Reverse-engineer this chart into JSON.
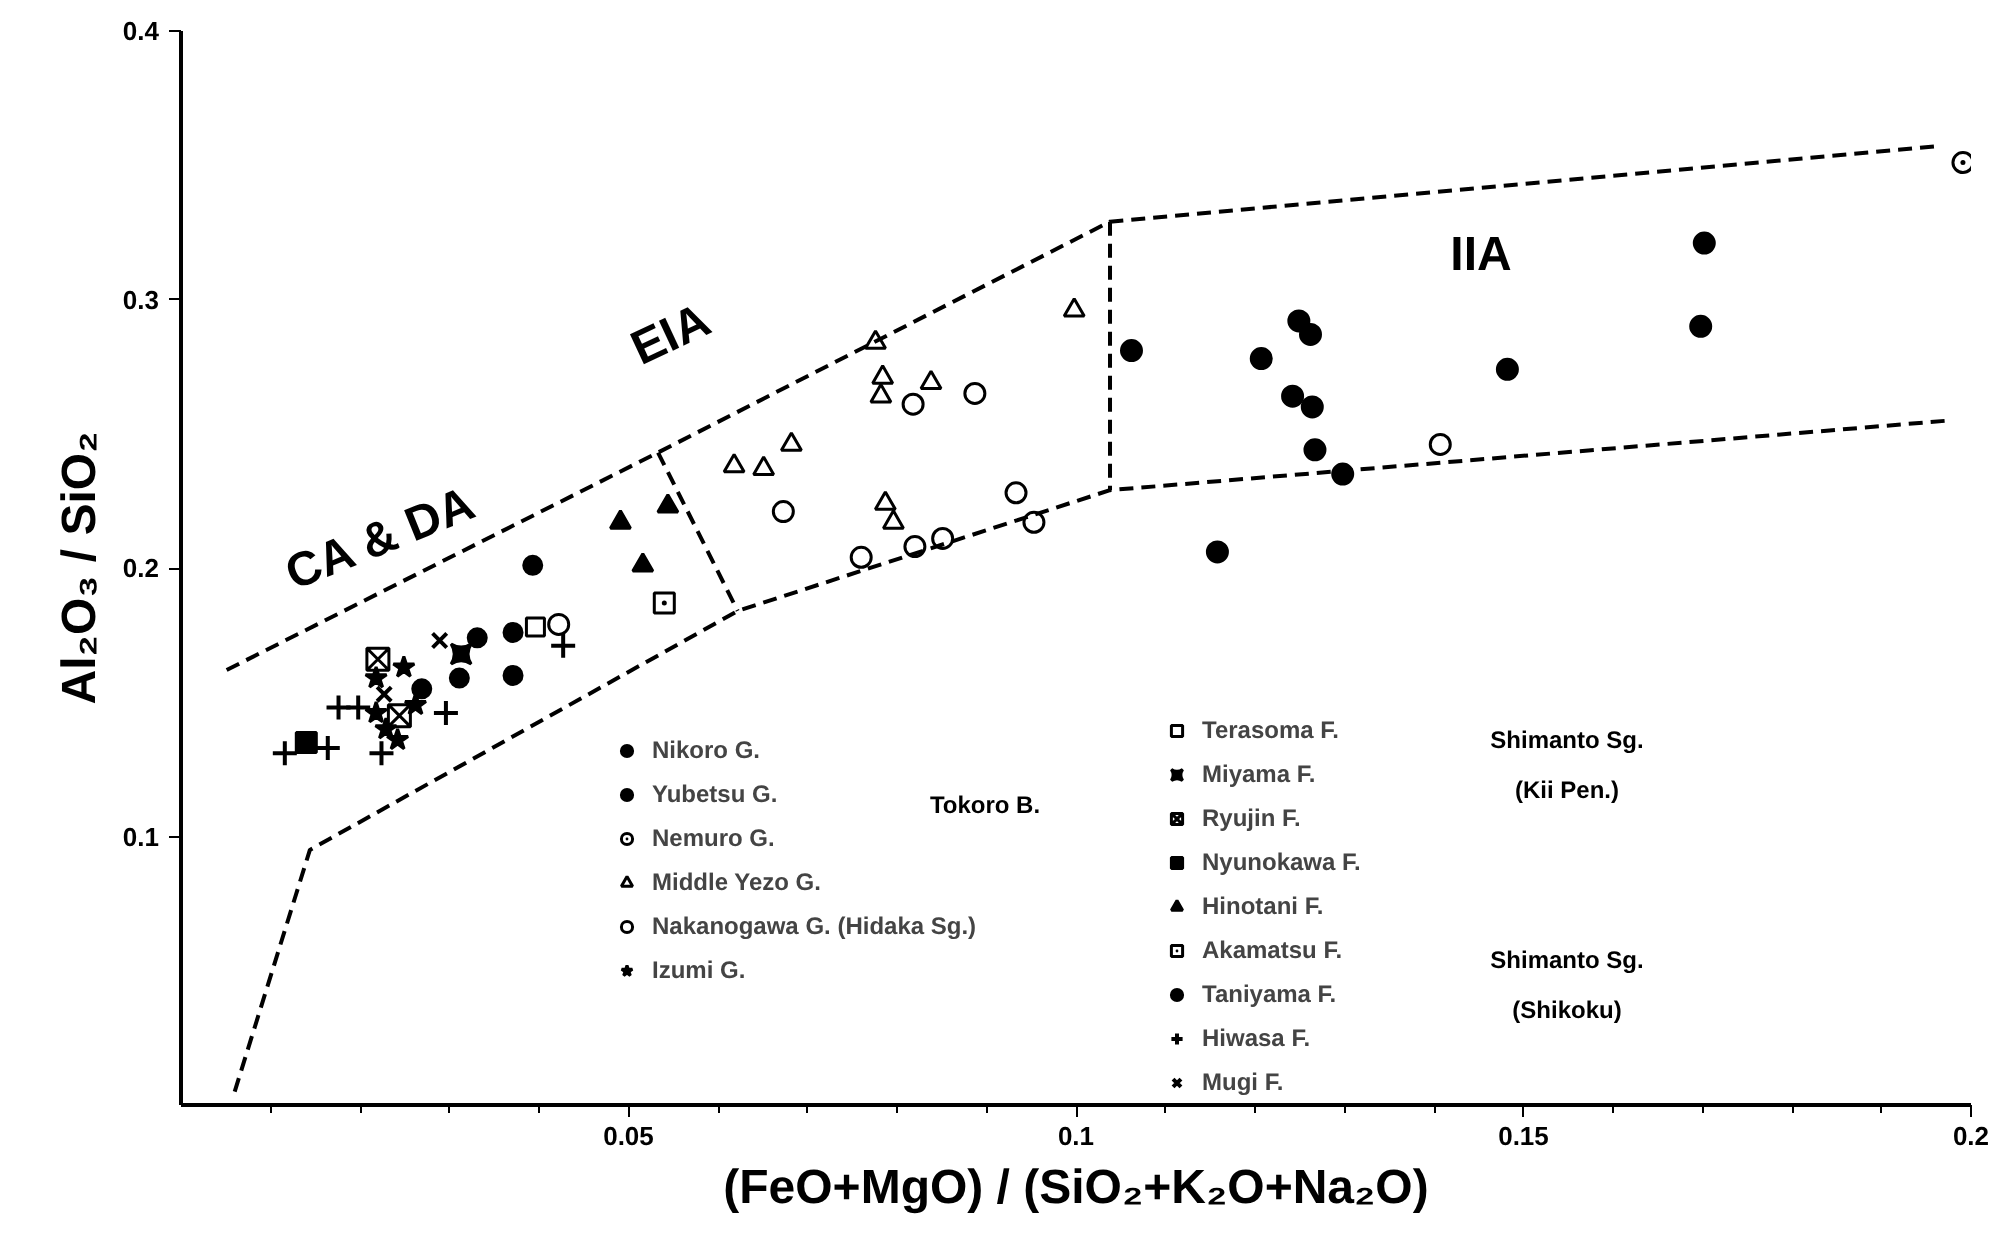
{
  "chart_data": {
    "type": "scatter",
    "xlabel": "(FeO+MgO) / (SiO₂+K₂O+Na₂O)",
    "ylabel": "Al₂O₃ / SiO₂",
    "xlim": [
      0,
      0.2
    ],
    "ylim": [
      0,
      0.4
    ],
    "xticks": [
      {
        "value": 0.01,
        "label": null
      },
      {
        "value": 0.02,
        "label": null
      },
      {
        "value": 0.03,
        "label": null
      },
      {
        "value": 0.04,
        "label": null
      },
      0.05,
      {
        "value": 0.06,
        "label": null
      },
      {
        "value": 0.07,
        "label": null
      },
      {
        "value": 0.08,
        "label": null
      },
      {
        "value": 0.09,
        "label": null
      },
      0.1,
      {
        "value": 0.11,
        "label": null
      },
      {
        "value": 0.12,
        "label": null
      },
      {
        "value": 0.13,
        "label": null
      },
      {
        "value": 0.14,
        "label": null
      },
      0.15,
      {
        "value": 0.16,
        "label": null
      },
      {
        "value": 0.17,
        "label": null
      },
      {
        "value": 0.18,
        "label": null
      },
      {
        "value": 0.19,
        "label": null
      },
      0.2
    ],
    "yticks": [
      0.1,
      0.2,
      0.3,
      0.4
    ],
    "grid": false,
    "legend": "bottom",
    "series": [
      {
        "name": "Nikoro G.",
        "color": "#000000",
        "marker": "circle",
        "x": [
          0.1702
        ],
        "values": [
          0.321
        ]
      },
      {
        "name": "Yubetsu G.",
        "color": "#000000",
        "marker": "circle",
        "x": [
          0.1062,
          0.1207,
          0.1249,
          0.1262,
          0.1242,
          0.1264,
          0.1267,
          0.1298,
          0.1482,
          0.1698,
          0.1158
        ],
        "values": [
          0.281,
          0.278,
          0.292,
          0.287,
          0.264,
          0.26,
          0.244,
          0.235,
          0.274,
          0.29,
          0.206
        ]
      },
      {
        "name": "Nemuro G.",
        "color": "#000000",
        "marker": "circle",
        "x": [
          0.1991
        ],
        "values": [
          0.351
        ]
      },
      {
        "name": "Middle Yezo G.",
        "color": "#000000",
        "marker": "triangle",
        "x": [
          0.0776,
          0.0784,
          0.0782,
          0.0838,
          0.0998,
          0.0682,
          0.0618,
          0.0651,
          0.0787,
          0.0796
        ],
        "values": [
          0.284,
          0.271,
          0.264,
          0.269,
          0.296,
          0.246,
          0.238,
          0.237,
          0.224,
          0.217
        ]
      },
      {
        "name": "Nakanogawa G. (Hidaka Sg.)",
        "color": "#000000",
        "marker": "circle",
        "x": [
          0.0422,
          0.0818,
          0.0887,
          0.0673,
          0.076,
          0.082,
          0.0851,
          0.0933,
          0.0953,
          0.1407
        ],
        "values": [
          0.179,
          0.261,
          0.265,
          0.221,
          0.204,
          0.208,
          0.211,
          0.228,
          0.217,
          0.246
        ]
      },
      {
        "name": "Izumi G.",
        "color": "#000000",
        "marker": "star",
        "x": [
          0.0249,
          0.0218,
          0.0218,
          0.0262,
          0.0229,
          0.0242
        ],
        "values": [
          0.163,
          0.159,
          0.146,
          0.149,
          0.14,
          0.136
        ]
      },
      {
        "name": "Terasoma F.",
        "color": "#000000",
        "marker": "square",
        "x": [
          0.0396
        ],
        "values": [
          0.178
        ]
      },
      {
        "name": "Miyama F.",
        "color": "#000000",
        "marker": "square",
        "x": [
          0.0313
        ],
        "values": [
          0.168
        ]
      },
      {
        "name": "Ryujin F.",
        "color": "#000000",
        "marker": "cross",
        "x": [
          0.022,
          0.0244
        ],
        "values": [
          0.166,
          0.145
        ]
      },
      {
        "name": "Nyunokawa F.",
        "color": "#000000",
        "marker": "square",
        "x": [
          0.014
        ],
        "values": [
          0.135
        ]
      },
      {
        "name": "Hinotani F.",
        "color": "#000000",
        "marker": "triangle",
        "x": [
          0.0491,
          0.0544,
          0.0516
        ],
        "values": [
          0.217,
          0.223,
          0.201
        ]
      },
      {
        "name": "Akamatsu F.",
        "color": "#000000",
        "marker": "square",
        "x": [
          0.054
        ],
        "values": [
          0.187
        ]
      },
      {
        "name": "Taniyama F.",
        "color": "#000000",
        "marker": "circle",
        "x": [
          0.0393,
          0.0331,
          0.0371,
          0.0269,
          0.0311,
          0.0371
        ],
        "values": [
          0.201,
          0.174,
          0.176,
          0.155,
          0.159,
          0.16
        ]
      },
      {
        "name": "Hiwasa F.",
        "color": "#000000",
        "marker": "cross",
        "x": [
          0.0427,
          0.0296,
          0.0176,
          0.0198,
          0.0116,
          0.0164,
          0.0224
        ],
        "values": [
          0.171,
          0.146,
          0.148,
          0.148,
          0.131,
          0.133,
          0.131
        ]
      },
      {
        "name": "Mugi F.",
        "color": "#000000",
        "marker": "cross",
        "x": [
          0.0289,
          0.0227
        ],
        "values": [
          0.173,
          0.153
        ]
      },
      {
        "type": "line",
        "color": "#000000",
        "line_style": "dashed",
        "x": [
          0.0051,
          0.0533,
          0.1038,
          0.196
        ],
        "values": [
          0.162,
          0.243,
          0.329,
          0.357
        ]
      },
      {
        "type": "line",
        "color": "#000000",
        "line_style": "dashed",
        "x": [
          0.006,
          0.0144,
          0.0622,
          0.1038,
          0.1978
        ],
        "values": [
          0.005,
          0.095,
          0.184,
          0.229,
          0.255
        ]
      },
      {
        "type": "line",
        "color": "#000000",
        "line_style": "dashed",
        "x": [
          0.0533,
          0.0622
        ],
        "values": [
          0.243,
          0.184
        ]
      },
      {
        "type": "line",
        "color": "#000000",
        "line_style": "dashed",
        "x": [
          0.1038,
          0.1038
        ],
        "values": [
          0.329,
          0.229
        ]
      }
    ],
    "annotations": [
      "CA & DA",
      "EIA",
      "IIA",
      "Tokoro B.",
      "Shimanto Sg. (Kii Pen.)",
      "Shimanto Sg. (Shikoku)"
    ]
  }
}
